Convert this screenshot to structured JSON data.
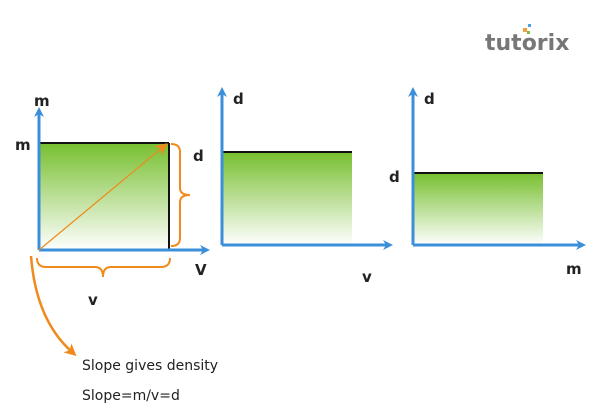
{
  "logo": {
    "text": "tutorix"
  },
  "graph1": {
    "y_axis_label": "m",
    "y_value_label": "m",
    "x_axis_label": "V",
    "x_value_label": "v",
    "slope_label": "d"
  },
  "graph2": {
    "y_axis_label": "d",
    "x_axis_label": "v"
  },
  "graph3": {
    "y_axis_label": "d",
    "y_value_label": "d",
    "x_axis_label": "m"
  },
  "notes": {
    "line1": "Slope gives density",
    "line2": "Slope=m/v=d"
  },
  "colors": {
    "axis": "#3b8fd9",
    "fill": "#7dc242",
    "accent": "#f08a1c"
  }
}
